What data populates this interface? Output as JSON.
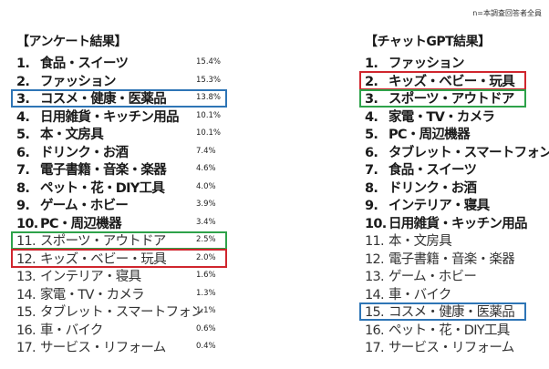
{
  "note": "n=本調査回答者全員",
  "colors": {
    "blue": "#2e75b6",
    "green": "#2ea24a",
    "red": "#d0262e"
  },
  "chart_data": {
    "type": "table",
    "left": {
      "title": "【アンケート結果】",
      "rows": [
        {
          "rank": "1.",
          "label": "食品・スイーツ",
          "pct": "15.4%",
          "value": 15.4,
          "bold": true
        },
        {
          "rank": "2.",
          "label": "ファッション",
          "pct": "15.3%",
          "value": 15.3,
          "bold": true
        },
        {
          "rank": "3.",
          "label": "コスメ・健康・医薬品",
          "pct": "13.8%",
          "value": 13.8,
          "bold": true,
          "highlight": "blue"
        },
        {
          "rank": "4.",
          "label": "日用雑貨・キッチン用品",
          "pct": "10.1%",
          "value": 10.1,
          "bold": true
        },
        {
          "rank": "5.",
          "label": "本・文房具",
          "pct": "10.1%",
          "value": 10.1,
          "bold": true
        },
        {
          "rank": "6.",
          "label": "ドリンク・お酒",
          "pct": "7.4%",
          "value": 7.4,
          "bold": true
        },
        {
          "rank": "7.",
          "label": "電子書籍・音楽・楽器",
          "pct": "4.6%",
          "value": 4.6,
          "bold": true
        },
        {
          "rank": "8.",
          "label": "ペット・花・DIY工具",
          "pct": "4.0%",
          "value": 4.0,
          "bold": true
        },
        {
          "rank": "9.",
          "label": "ゲーム・ホビー",
          "pct": "3.9%",
          "value": 3.9,
          "bold": true
        },
        {
          "rank": "10.",
          "label": "PC・周辺機器",
          "pct": "3.4%",
          "value": 3.4,
          "bold": true
        },
        {
          "rank": "11.",
          "label": "スポーツ・アウトドア",
          "pct": "2.5%",
          "value": 2.5,
          "bold": false,
          "highlight": "green"
        },
        {
          "rank": "12.",
          "label": "キッズ・ベビー・玩具",
          "pct": "2.0%",
          "value": 2.0,
          "bold": false,
          "highlight": "red"
        },
        {
          "rank": "13.",
          "label": "インテリア・寝具",
          "pct": "1.6%",
          "value": 1.6,
          "bold": false
        },
        {
          "rank": "14.",
          "label": "家電・TV・カメラ",
          "pct": "1.3%",
          "value": 1.3,
          "bold": false
        },
        {
          "rank": "15.",
          "label": "タブレット・スマートフォン",
          "pct": "1.1%",
          "value": 1.1,
          "bold": false
        },
        {
          "rank": "16.",
          "label": "車・バイク",
          "pct": "0.6%",
          "value": 0.6,
          "bold": false
        },
        {
          "rank": "17.",
          "label": "サービス・リフォーム",
          "pct": "0.4%",
          "value": 0.4,
          "bold": false
        }
      ]
    },
    "right": {
      "title": "【チャットGPT結果】",
      "rows": [
        {
          "rank": "1.",
          "label": "ファッション",
          "bold": true
        },
        {
          "rank": "2.",
          "label": "キッズ・ベビー・玩具",
          "bold": true,
          "highlight": "red"
        },
        {
          "rank": "3.",
          "label": "スポーツ・アウトドア",
          "bold": true,
          "highlight": "green"
        },
        {
          "rank": "4.",
          "label": "家電・TV・カメラ",
          "bold": true
        },
        {
          "rank": "5.",
          "label": "PC・周辺機器",
          "bold": true
        },
        {
          "rank": "6.",
          "label": "タブレット・スマートフォン",
          "bold": true
        },
        {
          "rank": "7.",
          "label": "食品・スイーツ",
          "bold": true
        },
        {
          "rank": "8.",
          "label": "ドリンク・お酒",
          "bold": true
        },
        {
          "rank": "9.",
          "label": "インテリア・寝具",
          "bold": true
        },
        {
          "rank": "10.",
          "label": "日用雑貨・キッチン用品",
          "bold": true
        },
        {
          "rank": "11.",
          "label": "本・文房具",
          "bold": false
        },
        {
          "rank": "12.",
          "label": "電子書籍・音楽・楽器",
          "bold": false
        },
        {
          "rank": "13.",
          "label": "ゲーム・ホビー",
          "bold": false
        },
        {
          "rank": "14.",
          "label": "車・バイク",
          "bold": false
        },
        {
          "rank": "15.",
          "label": "コスメ・健康・医薬品",
          "bold": false,
          "highlight": "blue"
        },
        {
          "rank": "16.",
          "label": "ペット・花・DIY工具",
          "bold": false
        },
        {
          "rank": "17.",
          "label": "サービス・リフォーム",
          "bold": false
        }
      ]
    }
  }
}
